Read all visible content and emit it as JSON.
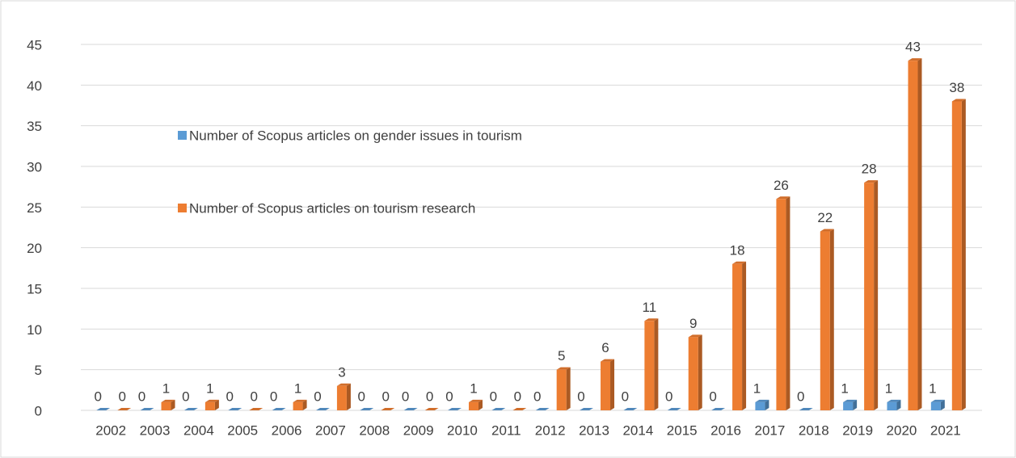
{
  "chart_data": {
    "type": "bar",
    "categories": [
      "2002",
      "2003",
      "2004",
      "2005",
      "2006",
      "2007",
      "2008",
      "2009",
      "2010",
      "2011",
      "2012",
      "2013",
      "2014",
      "2015",
      "2016",
      "2017",
      "2018",
      "2019",
      "2020",
      "2021"
    ],
    "series": [
      {
        "name": "Number of Scopus articles on gender issues in tourism",
        "color": "#5b9bd5",
        "values": [
          0,
          0,
          0,
          0,
          0,
          0,
          0,
          0,
          0,
          0,
          0,
          0,
          0,
          0,
          0,
          1,
          0,
          1,
          1,
          1
        ]
      },
      {
        "name": "Number of Scopus articles on tourism research",
        "color": "#ed7d31",
        "values": [
          0,
          1,
          1,
          0,
          1,
          3,
          0,
          0,
          1,
          0,
          5,
          6,
          11,
          9,
          18,
          26,
          22,
          28,
          43,
          38
        ]
      }
    ],
    "ylim": [
      0,
      45
    ],
    "yticks": [
      0,
      5,
      10,
      15,
      20,
      25,
      30,
      35,
      40,
      45
    ],
    "grid": true
  }
}
